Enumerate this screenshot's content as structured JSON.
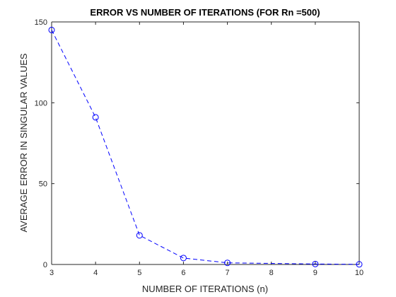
{
  "chart_data": {
    "type": "line",
    "title": "ERROR VS NUMBER OF ITERATIONS (FOR Rn =500)",
    "xlabel": "NUMBER OF ITERATIONS (n)",
    "ylabel": "AVERAGE ERROR IN SINGULAR VALUES",
    "xlim": [
      3,
      10
    ],
    "ylim": [
      0,
      150
    ],
    "xticks": [
      3,
      4,
      5,
      6,
      7,
      8,
      9,
      10
    ],
    "yticks": [
      0,
      50,
      100,
      150
    ],
    "grid": false,
    "legend": "none",
    "series": [
      {
        "x": [
          3,
          4,
          5,
          6,
          7,
          9,
          10
        ],
        "y": [
          145,
          91,
          18,
          4,
          1,
          0.3,
          0.1
        ],
        "color": "#0000ff",
        "line_style": "dashed",
        "marker": "circle"
      }
    ]
  }
}
